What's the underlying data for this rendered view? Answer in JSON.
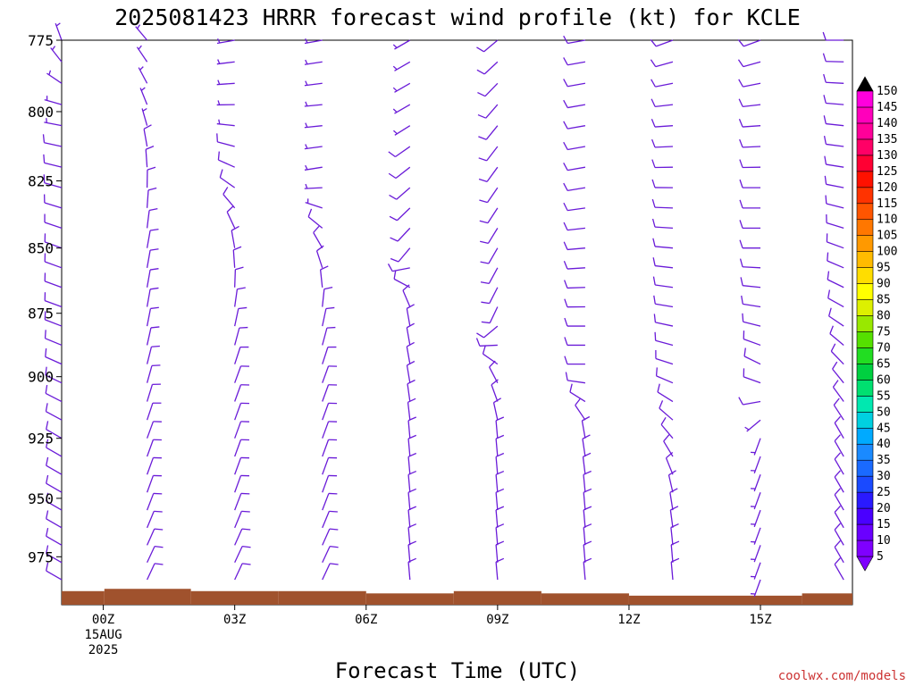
{
  "title": "2025081423 HRRR forecast wind profile (kt) for KCLE",
  "xlabel": "Forecast Time (UTC)",
  "credit": "coolwx.com/models",
  "colors": {
    "barb": "#6a1bd8",
    "ground": "#a0522d",
    "text": "#000000",
    "credit": "#cc3333"
  },
  "chart_data": {
    "type": "wind-barb-time-height",
    "yaxis": {
      "label": "",
      "unit": "hPa",
      "ticks": [
        775,
        800,
        825,
        850,
        875,
        900,
        925,
        950,
        975
      ],
      "range": [
        775,
        996
      ],
      "inverted": true
    },
    "xaxis": {
      "range_hours": [
        -0.95,
        17.1
      ],
      "ticks": [
        {
          "t": 0,
          "label": "00Z",
          "sub1": "15AUG",
          "sub2": "2025"
        },
        {
          "t": 3,
          "label": "03Z",
          "sub1": "",
          "sub2": ""
        },
        {
          "t": 6,
          "label": "06Z",
          "sub1": "",
          "sub2": ""
        },
        {
          "t": 9,
          "label": "09Z",
          "sub1": "",
          "sub2": ""
        },
        {
          "t": 12,
          "label": "12Z",
          "sub1": "",
          "sub2": ""
        },
        {
          "t": 15,
          "label": "15Z",
          "sub1": "",
          "sub2": ""
        }
      ]
    },
    "columns": [
      {
        "t": -0.95,
        "surface_p": 990,
        "levels": [
          [
            775,
            340,
            5
          ],
          [
            800,
            280,
            5
          ],
          [
            825,
            285,
            10
          ],
          [
            850,
            290,
            10
          ],
          [
            875,
            290,
            10
          ],
          [
            900,
            295,
            10
          ],
          [
            925,
            300,
            10
          ],
          [
            950,
            300,
            10
          ],
          [
            975,
            300,
            10
          ]
        ]
      },
      {
        "t": 1.0,
        "surface_p": 989,
        "levels": [
          [
            775,
            320,
            5
          ],
          [
            800,
            340,
            5
          ],
          [
            825,
            0,
            10
          ],
          [
            850,
            10,
            10
          ],
          [
            875,
            10,
            10
          ],
          [
            900,
            15,
            10
          ],
          [
            925,
            20,
            10
          ],
          [
            950,
            20,
            10
          ],
          [
            975,
            25,
            10
          ]
        ]
      },
      {
        "t": 3.0,
        "surface_p": 990,
        "levels": [
          [
            775,
            260,
            5
          ],
          [
            800,
            270,
            5
          ],
          [
            825,
            300,
            10
          ],
          [
            850,
            350,
            10
          ],
          [
            875,
            10,
            10
          ],
          [
            900,
            20,
            10
          ],
          [
            925,
            20,
            10
          ],
          [
            950,
            20,
            10
          ],
          [
            975,
            25,
            10
          ]
        ]
      },
      {
        "t": 5.0,
        "surface_p": 990,
        "levels": [
          [
            775,
            260,
            5
          ],
          [
            800,
            265,
            5
          ],
          [
            825,
            260,
            5
          ],
          [
            850,
            330,
            10
          ],
          [
            875,
            10,
            10
          ],
          [
            900,
            20,
            10
          ],
          [
            925,
            20,
            10
          ],
          [
            950,
            20,
            10
          ],
          [
            975,
            25,
            10
          ]
        ]
      },
      {
        "t": 7.0,
        "surface_p": 991,
        "levels": [
          [
            775,
            240,
            5
          ],
          [
            800,
            240,
            5
          ],
          [
            825,
            230,
            10
          ],
          [
            850,
            220,
            10
          ],
          [
            875,
            350,
            10
          ],
          [
            900,
            350,
            10
          ],
          [
            925,
            355,
            10
          ],
          [
            950,
            355,
            10
          ],
          [
            975,
            355,
            10
          ]
        ]
      },
      {
        "t": 9.0,
        "surface_p": 990,
        "levels": [
          [
            775,
            230,
            10
          ],
          [
            800,
            220,
            10
          ],
          [
            825,
            215,
            10
          ],
          [
            850,
            210,
            10
          ],
          [
            875,
            205,
            10
          ],
          [
            900,
            330,
            10
          ],
          [
            925,
            355,
            10
          ],
          [
            950,
            355,
            10
          ],
          [
            975,
            355,
            10
          ]
        ]
      },
      {
        "t": 11.0,
        "surface_p": 991,
        "levels": [
          [
            775,
            260,
            10
          ],
          [
            800,
            260,
            10
          ],
          [
            825,
            260,
            10
          ],
          [
            850,
            265,
            10
          ],
          [
            875,
            270,
            10
          ],
          [
            900,
            270,
            10
          ],
          [
            925,
            350,
            10
          ],
          [
            950,
            355,
            10
          ],
          [
            975,
            355,
            10
          ]
        ]
      },
      {
        "t": 13.0,
        "surface_p": 992,
        "levels": [
          [
            775,
            250,
            10
          ],
          [
            800,
            265,
            10
          ],
          [
            825,
            270,
            10
          ],
          [
            850,
            275,
            10
          ],
          [
            875,
            280,
            10
          ],
          [
            900,
            290,
            10
          ],
          [
            925,
            320,
            10
          ],
          [
            950,
            350,
            10
          ],
          [
            975,
            355,
            10
          ]
        ]
      },
      {
        "t": 15.0,
        "surface_p": 992,
        "levels": [
          [
            775,
            250,
            10
          ],
          [
            800,
            265,
            10
          ],
          [
            825,
            270,
            10
          ],
          [
            850,
            270,
            10
          ],
          [
            875,
            280,
            10
          ],
          [
            900,
            300,
            10
          ],
          [
            925,
            200,
            5
          ],
          [
            950,
            200,
            5
          ],
          [
            975,
            200,
            5
          ]
        ]
      },
      {
        "t": 16.9,
        "surface_p": 991,
        "levels": [
          [
            775,
            270,
            10
          ],
          [
            800,
            275,
            10
          ],
          [
            825,
            280,
            10
          ],
          [
            850,
            290,
            10
          ],
          [
            875,
            300,
            10
          ],
          [
            900,
            320,
            10
          ],
          [
            925,
            330,
            10
          ],
          [
            950,
            330,
            10
          ],
          [
            975,
            330,
            10
          ]
        ]
      }
    ],
    "colorbar": {
      "values": [
        5,
        10,
        15,
        20,
        25,
        30,
        35,
        40,
        45,
        50,
        55,
        60,
        65,
        70,
        75,
        80,
        85,
        90,
        95,
        100,
        105,
        110,
        115,
        120,
        125,
        130,
        135,
        140,
        145,
        150
      ],
      "colors": [
        "#7f00ff",
        "#6a00ff",
        "#4a00ff",
        "#2a1aff",
        "#1a4aff",
        "#1a6aff",
        "#1a8aff",
        "#00aaff",
        "#00d0e0",
        "#00e8b0",
        "#00e070",
        "#00d040",
        "#22dd22",
        "#55e000",
        "#99e800",
        "#ddf000",
        "#ffff00",
        "#ffdd00",
        "#ffbb00",
        "#ff9900",
        "#ff7700",
        "#ff5500",
        "#ff3300",
        "#ff1100",
        "#ff0033",
        "#ff0066",
        "#ff0099",
        "#ff00bb",
        "#ff00dd",
        "#000000"
      ]
    }
  }
}
